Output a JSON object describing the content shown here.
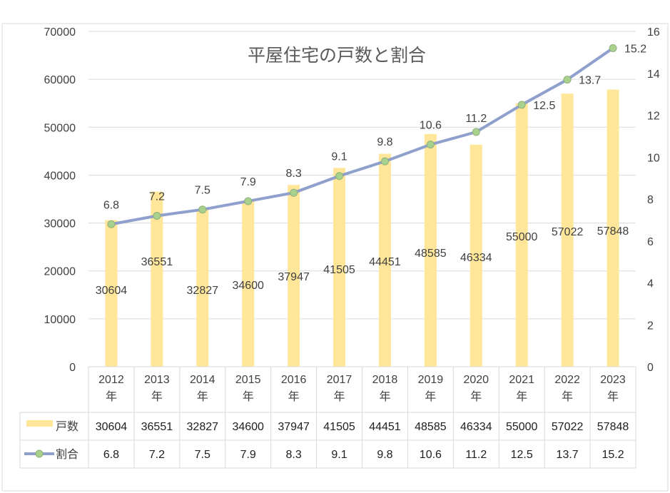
{
  "chart_data": {
    "type": "bar",
    "title": "平屋住宅の戸数と割合",
    "categories": [
      "2012年",
      "2013年",
      "2014年",
      "2015年",
      "2016年",
      "2017年",
      "2018年",
      "2019年",
      "2020年",
      "2021年",
      "2022年",
      "2023年"
    ],
    "category_lines": [
      [
        "2012",
        "年"
      ],
      [
        "2013",
        "年"
      ],
      [
        "2014",
        "年"
      ],
      [
        "2015",
        "年"
      ],
      [
        "2016",
        "年"
      ],
      [
        "2017",
        "年"
      ],
      [
        "2018",
        "年"
      ],
      [
        "2019",
        "年"
      ],
      [
        "2020",
        "年"
      ],
      [
        "2021",
        "年"
      ],
      [
        "2022",
        "年"
      ],
      [
        "2023",
        "年"
      ]
    ],
    "series": [
      {
        "name": "戸数",
        "type": "bar",
        "axis": "left",
        "color": "#FFE699",
        "values": [
          30604,
          36551,
          32827,
          34600,
          37947,
          41505,
          44451,
          48585,
          46334,
          55000,
          57022,
          57848
        ]
      },
      {
        "name": "割合",
        "type": "line",
        "axis": "right",
        "color": "#8FA0CC",
        "marker_color": "#A9D18E",
        "values": [
          6.8,
          7.2,
          7.5,
          7.9,
          8.3,
          9.1,
          9.8,
          10.6,
          11.2,
          12.5,
          13.7,
          15.2
        ]
      }
    ],
    "y_left": {
      "min": 0,
      "max": 70000,
      "ticks": [
        0,
        10000,
        20000,
        30000,
        40000,
        50000,
        60000,
        70000
      ]
    },
    "y_right": {
      "min": 0,
      "max": 16,
      "ticks": [
        0,
        2,
        4,
        6,
        8,
        10,
        12,
        14,
        16
      ]
    },
    "data_table": true,
    "grid": "horizontal"
  }
}
